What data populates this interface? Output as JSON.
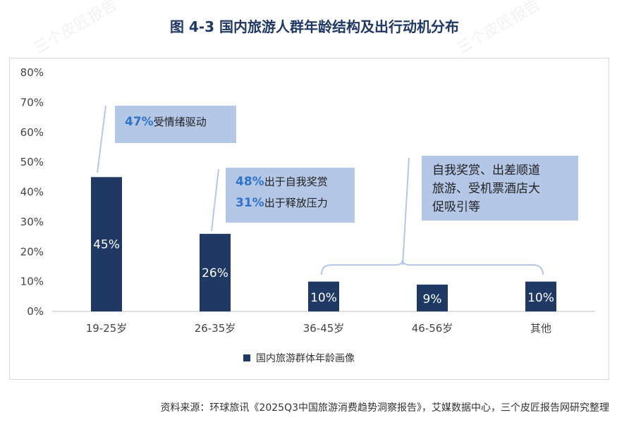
{
  "page": {
    "title": "图  4-3  国内旅游人群年龄结构及出行动机分布",
    "source": "资料来源：环球旅讯《2025Q3中国旅游消费趋势洞察报告》，艾媒数据中心，三个皮匠报告网研究整理",
    "watermark": "三个皮匠报告"
  },
  "callouts": {
    "c1": {
      "pct": "47%",
      "text": "受情绪驱动"
    },
    "c2a": {
      "pct": "48%",
      "text": "出于自我奖赏"
    },
    "c2b": {
      "pct": "31%",
      "text": "出于释放压力"
    },
    "c3": {
      "line1": "自我奖赏、出差顺道",
      "line2": "旅游、受机票酒店大",
      "line3": "促吸引等"
    }
  },
  "colors": {
    "bar": "#1f3864",
    "callout_bg": "#b4c7e7",
    "callout_pct": "#2e74c9",
    "connector": "#b4c7e7",
    "title": "#1f3864"
  },
  "chart_data": {
    "type": "bar",
    "title": "",
    "categories": [
      "19-25岁",
      "26-35岁",
      "36-45岁",
      "46-56岁",
      "其他"
    ],
    "series": [
      {
        "name": "国内旅游群体年龄画像",
        "values": [
          45,
          26,
          10,
          9,
          10
        ]
      }
    ],
    "data_labels": [
      "45%",
      "26%",
      "10%",
      "9%",
      "10%"
    ],
    "y_ticks": [
      "0%",
      "10%",
      "20%",
      "30%",
      "40%",
      "50%",
      "60%",
      "70%",
      "80%"
    ],
    "ylim": [
      0,
      80
    ],
    "grid": false,
    "legend_position": "bottom"
  }
}
